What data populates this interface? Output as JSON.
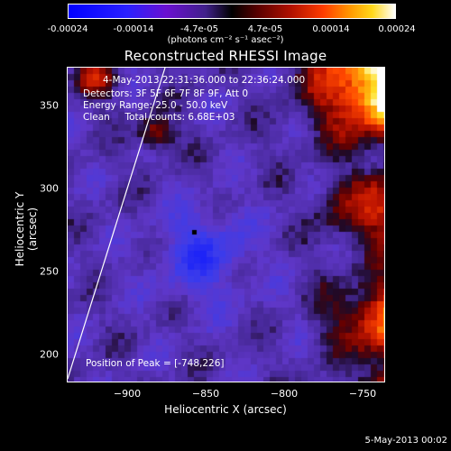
{
  "colorbar": {
    "ticks": [
      "-0.00024",
      "-0.00014",
      "-4.7e-05",
      "4.7e-05",
      "0.00014",
      "0.00024"
    ],
    "units": "(photons cm⁻² s⁻¹ asec⁻²)"
  },
  "title": "Reconstructed RHESSI Image",
  "info": {
    "time_range": "4-May-2013 22:31:36.000 to 22:36:24.000",
    "detectors": "Detectors: 3F 5F 6F 7F 8F 9F, Att 0",
    "energy": "Energy Range: 25.0 - 50.0 keV",
    "clean": "Clean     Total counts: 6.68E+03",
    "peak": "Position of Peak = [-748,226]"
  },
  "axes": {
    "xlabel": "Heliocentric X (arcsec)",
    "ylabel": "Heliocentric Y (arcsec)",
    "xticks": [
      "−900",
      "−850",
      "−800",
      "−750"
    ],
    "yticks": [
      "350",
      "300",
      "250",
      "200"
    ],
    "xlim": [
      -935,
      -732
    ],
    "ylim": [
      182,
      372
    ]
  },
  "footer": "5-May-2013 00:02",
  "colors": {
    "background": "#000000",
    "text": "#ffffff"
  }
}
